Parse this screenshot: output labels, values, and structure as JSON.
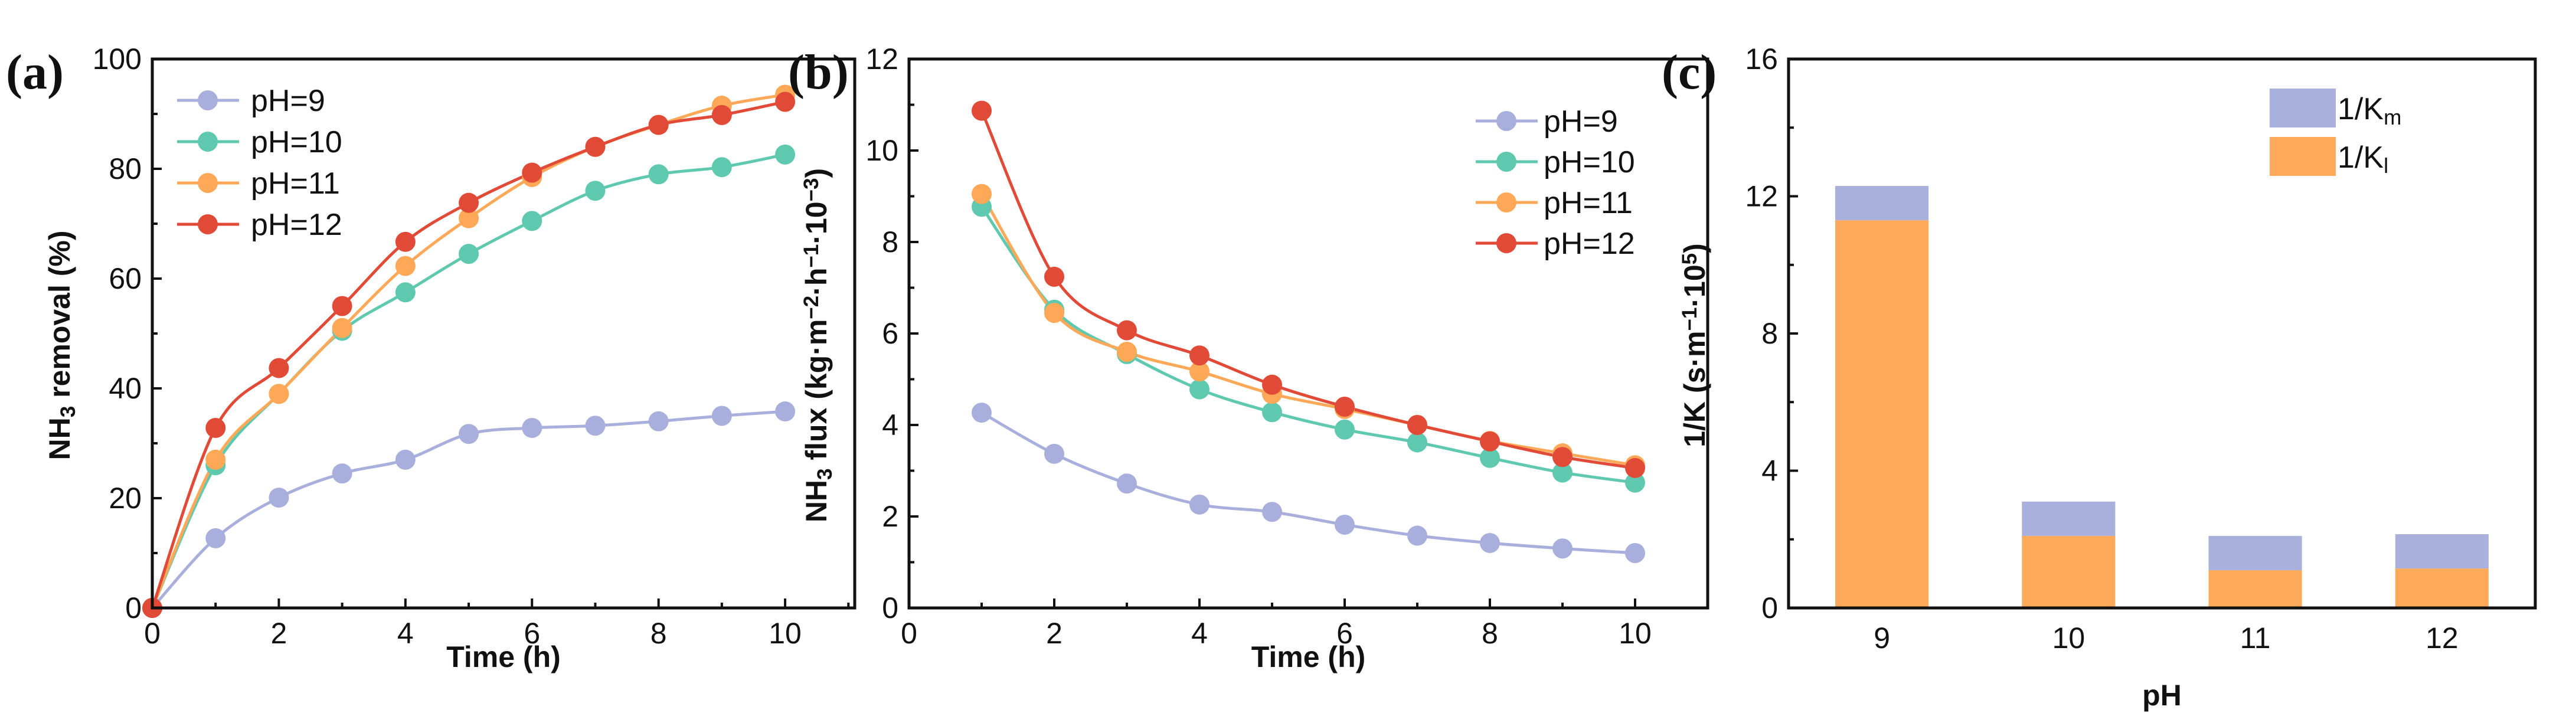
{
  "chart_data": [
    {
      "panel_label": "(a)",
      "type": "line",
      "xlabel": "Time (h)",
      "ylabel_parts": [
        {
          "t": "NH",
          "s": "n"
        },
        {
          "t": "3",
          "s": "sub"
        },
        {
          "t": " removal (%)",
          "s": "n"
        }
      ],
      "xlim": [
        0,
        11.1
      ],
      "ylim": [
        0,
        100
      ],
      "xticks": [
        0,
        2,
        4,
        6,
        8,
        10
      ],
      "yticks": [
        0,
        20,
        40,
        60,
        80,
        100
      ],
      "xminor": 1,
      "yminor": 10,
      "legend_position": "top-left",
      "x": [
        0,
        1,
        2,
        3,
        4,
        5,
        6,
        7,
        8,
        9,
        10
      ],
      "series": [
        {
          "name": "pH=9",
          "color": "#A9AFDC",
          "values": [
            0,
            12.7,
            20.1,
            24.5,
            27.0,
            31.7,
            32.8,
            33.2,
            34.0,
            35.0,
            35.8
          ]
        },
        {
          "name": "pH=10",
          "color": "#5FC9B0",
          "values": [
            0,
            26.0,
            39.0,
            50.5,
            57.5,
            64.5,
            70.5,
            76.0,
            79.0,
            80.3,
            82.6
          ]
        },
        {
          "name": "pH=11",
          "color": "#FFA857",
          "values": [
            0,
            27.0,
            39.0,
            51.0,
            62.3,
            71.0,
            78.5,
            84.0,
            88.0,
            91.5,
            93.5
          ]
        },
        {
          "name": "pH=12",
          "color": "#E04A37",
          "values": [
            0,
            32.8,
            43.7,
            55.0,
            66.7,
            73.8,
            79.3,
            84.0,
            88.0,
            89.8,
            92.2
          ]
        }
      ]
    },
    {
      "panel_label": "(b)",
      "type": "line",
      "xlabel": "Time (h)",
      "ylabel_parts": [
        {
          "t": "NH",
          "s": "n"
        },
        {
          "t": "3",
          "s": "sub"
        },
        {
          "t": " flux (kg·m",
          "s": "n"
        },
        {
          "t": "−2",
          "s": "sup"
        },
        {
          "t": "·h",
          "s": "n"
        },
        {
          "t": "−1",
          "s": "sup"
        },
        {
          "t": "·10",
          "s": "n"
        },
        {
          "t": "−3",
          "s": "sup"
        },
        {
          "t": ")",
          "s": "n"
        }
      ],
      "xlim": [
        0,
        11
      ],
      "ylim": [
        0,
        12
      ],
      "xticks": [
        0,
        2,
        4,
        6,
        8,
        10
      ],
      "yticks": [
        0,
        2,
        4,
        6,
        8,
        10,
        12
      ],
      "xminor": 1,
      "yminor": 1,
      "legend_position": "top-right",
      "x": [
        1,
        2,
        3,
        4,
        5,
        6,
        7,
        8,
        9,
        10
      ],
      "series": [
        {
          "name": "pH=9",
          "color": "#A9AFDC",
          "values": [
            4.27,
            3.37,
            2.72,
            2.26,
            2.1,
            1.82,
            1.58,
            1.42,
            1.3,
            1.2
          ]
        },
        {
          "name": "pH=10",
          "color": "#5FC9B0",
          "values": [
            8.77,
            6.52,
            5.55,
            4.78,
            4.28,
            3.9,
            3.62,
            3.28,
            2.96,
            2.74
          ]
        },
        {
          "name": "pH=11",
          "color": "#FFA857",
          "values": [
            9.05,
            6.45,
            5.6,
            5.17,
            4.68,
            4.35,
            4.0,
            3.65,
            3.38,
            3.12
          ]
        },
        {
          "name": "pH=12",
          "color": "#E04A37",
          "values": [
            10.87,
            7.24,
            6.07,
            5.52,
            4.88,
            4.4,
            4.0,
            3.64,
            3.3,
            3.06
          ]
        }
      ]
    },
    {
      "panel_label": "(c)",
      "type": "bar",
      "stacked": true,
      "xlabel": "pH",
      "ylabel_parts": [
        {
          "t": "1/K (s·m",
          "s": "n"
        },
        {
          "t": "−1",
          "s": "sup"
        },
        {
          "t": "·10",
          "s": "n"
        },
        {
          "t": "5",
          "s": "sup"
        },
        {
          "t": ")",
          "s": "n"
        }
      ],
      "ylim": [
        0,
        16
      ],
      "yticks": [
        0,
        4,
        8,
        12,
        16
      ],
      "yminor": 2,
      "legend_position": "top-right",
      "categories": [
        "9",
        "10",
        "11",
        "12"
      ],
      "series": [
        {
          "name_parts": [
            {
              "t": "1/K",
              "s": "n"
            },
            {
              "t": "l",
              "s": "sub"
            }
          ],
          "color": "#FFA95A",
          "values": [
            11.3,
            2.1,
            1.1,
            1.15
          ]
        },
        {
          "name_parts": [
            {
              "t": "1/K",
              "s": "n"
            },
            {
              "t": "m",
              "s": "sub"
            }
          ],
          "color": "#A9B0DB",
          "values": [
            1.0,
            1.0,
            1.0,
            1.0
          ]
        }
      ]
    }
  ]
}
